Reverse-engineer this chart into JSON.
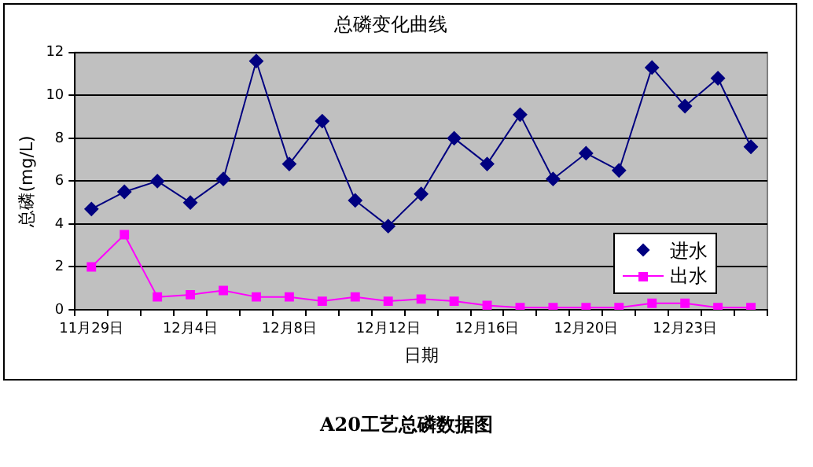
{
  "chart_data": {
    "type": "line",
    "title": "总磷变化曲线",
    "xlabel": "日期",
    "ylabel": "总磷(mg/L)",
    "categories": [
      "11月29日",
      null,
      null,
      "12月4日",
      null,
      null,
      "12月8日",
      null,
      null,
      "12月12日",
      null,
      null,
      "12月16日",
      null,
      null,
      "12月20日",
      null,
      null,
      "12月23日",
      null,
      null
    ],
    "series": [
      {
        "name": "进水",
        "color": "#000080",
        "marker": "diamond",
        "values": [
          4.7,
          5.5,
          6.0,
          5.0,
          6.1,
          11.6,
          6.8,
          8.8,
          5.1,
          3.9,
          5.4,
          8.0,
          6.8,
          9.1,
          6.1,
          7.3,
          6.5,
          11.3,
          9.5,
          10.8,
          7.6
        ]
      },
      {
        "name": "出水",
        "color": "#ff00ff",
        "marker": "square",
        "values": [
          2.0,
          3.5,
          0.6,
          0.7,
          0.9,
          0.6,
          0.6,
          0.4,
          0.6,
          0.4,
          0.5,
          0.4,
          0.2,
          0.1,
          0.1,
          0.1,
          0.1,
          0.3,
          0.3,
          0.1,
          0.1
        ]
      }
    ],
    "ylim": [
      0,
      12
    ],
    "yticks": [
      0,
      2,
      4,
      6,
      8,
      10,
      12
    ],
    "grid": "y",
    "legend": "bottom right",
    "annotations": [
      "A20工艺总磷数据图"
    ]
  }
}
